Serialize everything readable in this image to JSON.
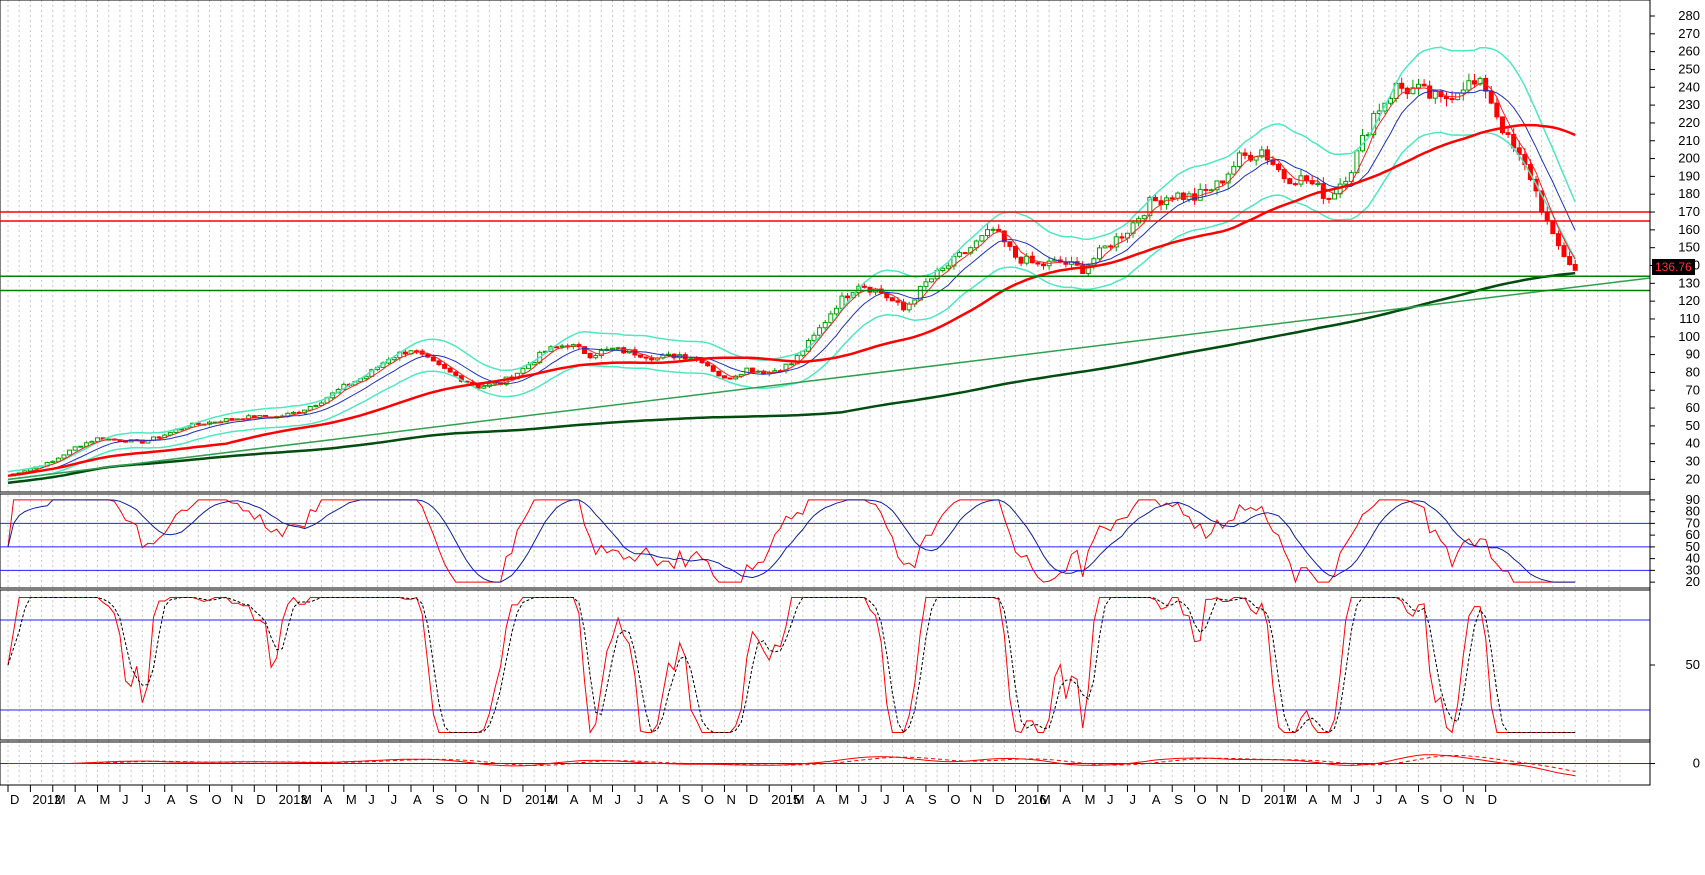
{
  "price_label": "136.76",
  "colors": {
    "background": "#ffffff",
    "up_candle": "#00a000",
    "down_candle": "#ff0000",
    "bollinger": "#4de8c0",
    "ma_short": "#ff2020",
    "ma_mid": "#2030c0",
    "ma_200_red": "#ff0000",
    "ma_long_green": "#004d10",
    "trendline": "#30a050",
    "support": "#008000",
    "resistance": "#ff0000",
    "osc_line": "#ff0000",
    "osc_signal": "#1020a0",
    "osc_level": "#2020ff"
  },
  "x_axis_labels": [
    "D",
    "2012",
    "M",
    "A",
    "M",
    "J",
    "J",
    "A",
    "S",
    "O",
    "N",
    "D",
    "2013",
    "M",
    "A",
    "M",
    "J",
    "J",
    "A",
    "S",
    "O",
    "N",
    "D",
    "2014",
    "M",
    "A",
    "M",
    "J",
    "J",
    "A",
    "S",
    "O",
    "N",
    "D",
    "2015",
    "M",
    "A",
    "M",
    "J",
    "J",
    "A",
    "S",
    "O",
    "N",
    "D",
    "2016",
    "M",
    "A",
    "M",
    "J",
    "J",
    "A",
    "S",
    "O",
    "N",
    "D",
    "2017",
    "M",
    "A",
    "M",
    "J",
    "J",
    "A",
    "S",
    "O",
    "N",
    "D"
  ],
  "chart_data": [
    {
      "type": "line",
      "panel": "price",
      "ylim": [
        0,
        280
      ],
      "yticks": [
        0,
        10,
        20,
        30,
        40,
        50,
        60,
        70,
        80,
        90,
        100,
        110,
        120,
        130,
        140,
        150,
        160,
        170,
        180,
        190,
        200,
        210,
        220,
        230,
        240,
        250,
        260,
        270,
        280
      ],
      "x_start": "2011-12",
      "x_end": "2017-12",
      "series": [
        {
          "values_by_month": {
            "2011-12": 22,
            "2012-02": 30,
            "2012-03": 38,
            "2012-04": 43,
            "2012-05": 42,
            "2012-06": 41,
            "2012-07": 45,
            "2012-08": 50,
            "2012-09": 52,
            "2012-10": 54,
            "2012-11": 55,
            "2012-12": 55,
            "2013-01": 58,
            "2013-02": 64,
            "2013-03": 72,
            "2013-04": 78,
            "2013-05": 88,
            "2013-06": 93,
            "2013-07": 85,
            "2013-08": 78,
            "2013-09": 72,
            "2013-10": 74,
            "2013-11": 82,
            "2013-12": 92,
            "2014-01": 96,
            "2014-02": 90,
            "2014-03": 93,
            "2014-04": 91,
            "2014-05": 88,
            "2014-06": 90,
            "2014-07": 87,
            "2014-08": 76,
            "2014-09": 82,
            "2014-10": 80,
            "2014-11": 85,
            "2014-12": 100,
            "2015-01": 118,
            "2015-02": 130,
            "2015-03": 125,
            "2015-04": 115,
            "2015-05": 130,
            "2015-06": 140,
            "2015-07": 150,
            "2015-08": 160,
            "2015-09": 145,
            "2015-10": 140,
            "2015-11": 142,
            "2015-12": 138,
            "2016-01": 150,
            "2016-02": 160,
            "2016-03": 175,
            "2016-04": 180,
            "2016-05": 178,
            "2016-06": 185,
            "2016-07": 200,
            "2016-08": 205,
            "2016-09": 190,
            "2016-10": 188,
            "2016-11": 178,
            "2016-12": 195,
            "2017-01": 225,
            "2017-02": 240,
            "2017-03": 238,
            "2017-04": 232,
            "2017-05": 242,
            "2017-06": 240,
            "2017-07": 210,
            "2017-08": 190,
            "2017-09": 155,
            "2017-10": 137
          }
        }
      ],
      "horizontal_lines": [
        {
          "value": 170,
          "color": "#ff0000"
        },
        {
          "value": 165,
          "color": "#ff0000"
        },
        {
          "value": 134,
          "color": "#008000"
        },
        {
          "value": 126,
          "color": "#008000"
        }
      ],
      "last_price": 136.76
    },
    {
      "type": "line",
      "panel": "oscillator_1",
      "ylim": [
        15,
        95
      ],
      "yticks": [
        20,
        30,
        40,
        50,
        60,
        70,
        80,
        90
      ],
      "levels": [
        30,
        50,
        70
      ]
    },
    {
      "type": "line",
      "panel": "oscillator_2",
      "ylim": [
        0,
        100
      ],
      "yticks": [
        50
      ],
      "levels": [
        20,
        80
      ]
    },
    {
      "type": "line",
      "panel": "oscillator_3",
      "ylim": [
        -2,
        2
      ],
      "yticks": [
        0
      ],
      "levels": [
        0
      ]
    }
  ]
}
